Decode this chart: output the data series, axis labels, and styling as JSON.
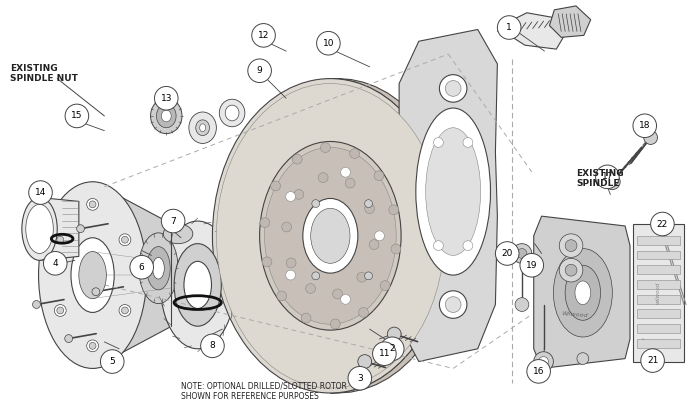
{
  "bg": "#ffffff",
  "lc": "#444444",
  "lc_light": "#888888",
  "fill_light": "#e8e8e8",
  "fill_mid": "#d0d0d0",
  "fill_dark": "#b8b8b8",
  "fill_rotor": "#ddd8d0",
  "fill_bracket": "#d8d8d8",
  "note_text": "NOTE: OPTIONAL DRILLED/SLOTTED ROTOR\nSHOWN FOR REFERENCE PURPOSES",
  "label_nut": "EXISTING\nSPINDLE NUT",
  "label_spindle": "EXISTING\nSPINDLE",
  "circle_r": 0.018,
  "fs_num": 6.5,
  "fs_label": 6.5
}
